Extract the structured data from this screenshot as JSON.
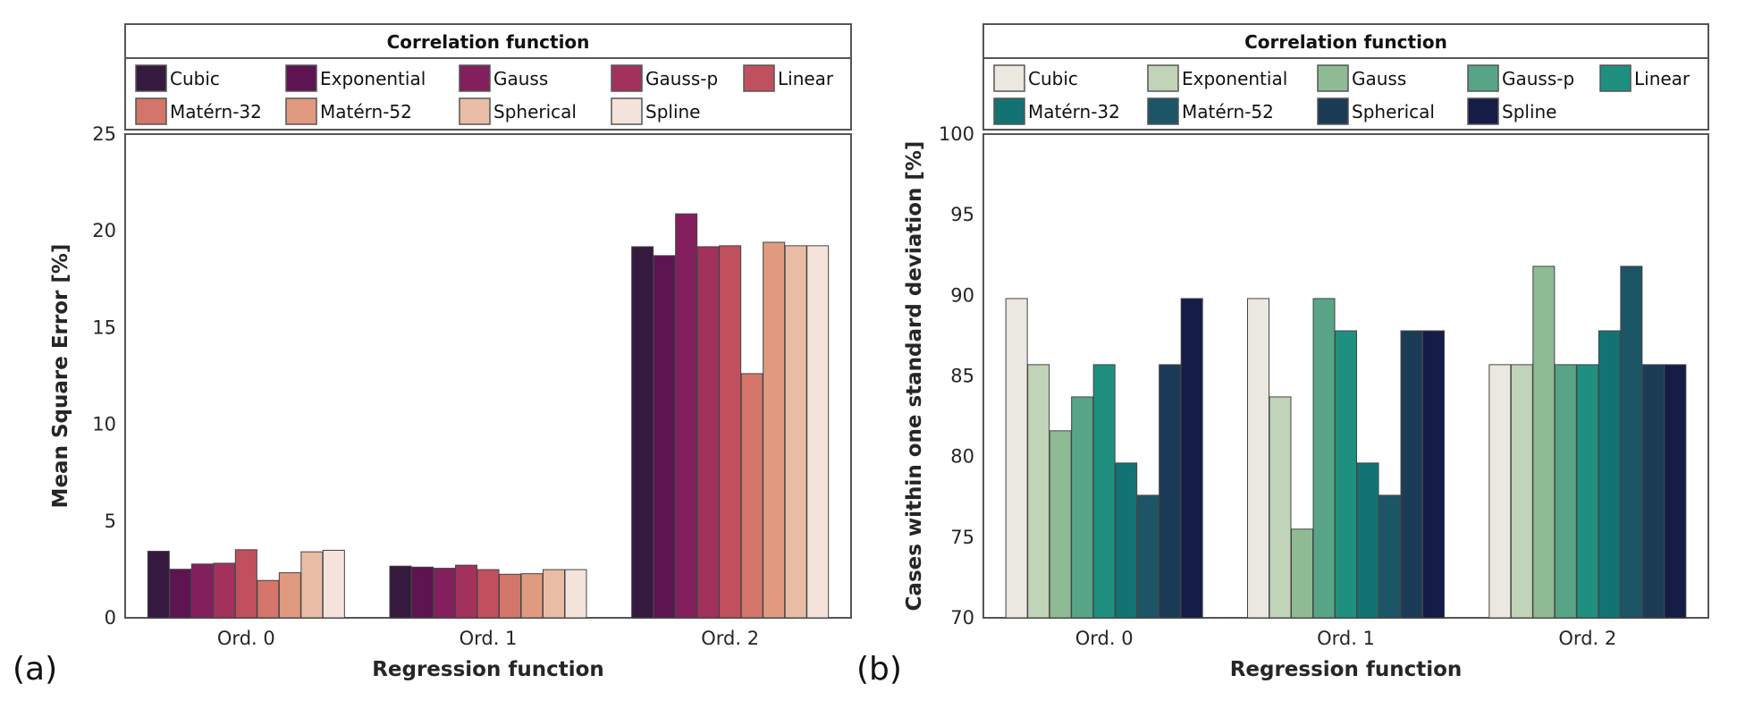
{
  "chart_data": [
    {
      "type": "bar",
      "panel_label": "(a)",
      "title": "",
      "legend_title": "Correlation function",
      "legend_position": "top",
      "xlabel": "Regression function",
      "ylabel": "Mean Square Error [%]",
      "ylim": [
        0,
        25
      ],
      "yticks": [
        0,
        5,
        10,
        15,
        20,
        25
      ],
      "grid": false,
      "categories": [
        "Ord. 0",
        "Ord. 1",
        "Ord. 2"
      ],
      "series": [
        {
          "name": "Cubic",
          "color": "#35193e",
          "values": [
            3.44,
            2.67,
            19.18
          ]
        },
        {
          "name": "Exponential",
          "color": "#5d1451",
          "values": [
            2.51,
            2.62,
            18.72
          ]
        },
        {
          "name": "Gauss",
          "color": "#831f5c",
          "values": [
            2.78,
            2.56,
            20.88
          ]
        },
        {
          "name": "Gauss-p",
          "color": "#a2325c",
          "values": [
            2.82,
            2.72,
            19.18
          ]
        },
        {
          "name": "Linear",
          "color": "#c1505e",
          "values": [
            3.52,
            2.49,
            19.23
          ]
        },
        {
          "name": "Matérn-32",
          "color": "#d3756a",
          "values": [
            1.93,
            2.25,
            12.62
          ]
        },
        {
          "name": "Matérn-52",
          "color": "#e09a7f",
          "values": [
            2.33,
            2.28,
            19.41
          ]
        },
        {
          "name": "Spherical",
          "color": "#e9bda5",
          "values": [
            3.41,
            2.49,
            19.23
          ]
        },
        {
          "name": "Spline",
          "color": "#f4e3da",
          "values": [
            3.49,
            2.49,
            19.23
          ]
        }
      ]
    },
    {
      "type": "bar",
      "panel_label": "(b)",
      "title": "",
      "legend_title": "Correlation function",
      "legend_position": "top",
      "xlabel": "Regression function",
      "ylabel": "Cases within one standard deviation [%]",
      "ylim": [
        70,
        100
      ],
      "yticks": [
        70,
        75,
        80,
        85,
        90,
        95,
        100
      ],
      "grid": false,
      "categories": [
        "Ord. 0",
        "Ord. 1",
        "Ord. 2"
      ],
      "series": [
        {
          "name": "Cubic",
          "color": "#ebe8df",
          "values": [
            89.8,
            89.8,
            85.7
          ]
        },
        {
          "name": "Exponential",
          "color": "#c1d3b8",
          "values": [
            85.7,
            83.7,
            85.7
          ]
        },
        {
          "name": "Gauss",
          "color": "#8fbb94",
          "values": [
            81.6,
            75.5,
            91.8
          ]
        },
        {
          "name": "Gauss-p",
          "color": "#57a586",
          "values": [
            83.7,
            89.8,
            85.7
          ]
        },
        {
          "name": "Linear",
          "color": "#1f8f80",
          "values": [
            85.7,
            87.8,
            85.7
          ]
        },
        {
          "name": "Matérn-32",
          "color": "#137373",
          "values": [
            79.6,
            79.6,
            87.8
          ]
        },
        {
          "name": "Matérn-52",
          "color": "#1c5566",
          "values": [
            77.6,
            77.6,
            91.8
          ]
        },
        {
          "name": "Spherical",
          "color": "#1c3b56",
          "values": [
            85.7,
            87.8,
            85.7
          ]
        },
        {
          "name": "Spline",
          "color": "#141c47",
          "values": [
            89.8,
            87.8,
            85.7
          ]
        }
      ]
    }
  ]
}
